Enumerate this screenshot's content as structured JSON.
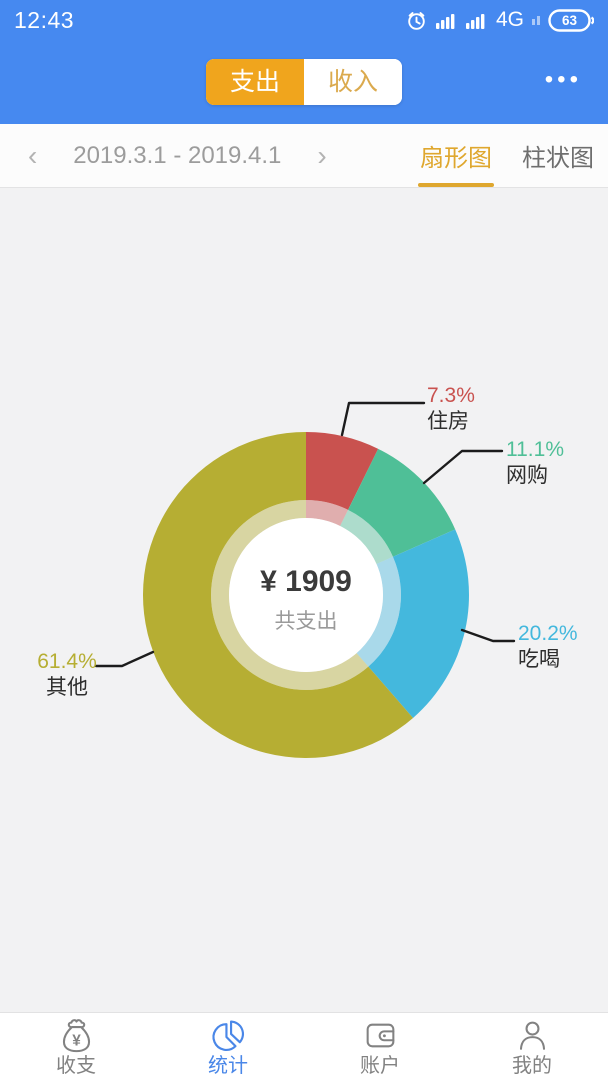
{
  "status_bar": {
    "time": "12:43",
    "network": "4G",
    "battery_percent": "63"
  },
  "header": {
    "expense_label": "支出",
    "income_label": "收入",
    "more_menu": "•••"
  },
  "period_bar": {
    "prev": "‹",
    "next": "›",
    "range": "2019.3.1 - 2019.4.1",
    "pie_tab": "扇形图",
    "bar_tab": "柱状图"
  },
  "chart_data": {
    "type": "pie",
    "style": "donut",
    "direction": "clockwise",
    "start_angle_deg": 0,
    "center": {
      "amount": "¥ 1909",
      "label": "共支出"
    },
    "total": 1909,
    "currency": "¥",
    "legend_position": "outside-callouts",
    "slices": [
      {
        "name": "住房",
        "pct": 7.3,
        "pct_label": "7.3%",
        "color": "#c9524f"
      },
      {
        "name": "网购",
        "pct": 11.1,
        "pct_label": "11.1%",
        "color": "#4fbf97"
      },
      {
        "name": "吃喝",
        "pct": 20.2,
        "pct_label": "20.2%",
        "color": "#44b8dd"
      },
      {
        "name": "其他",
        "pct": 61.4,
        "pct_label": "61.4%",
        "color": "#b6ae33"
      }
    ]
  },
  "tab_bar": {
    "items": [
      {
        "label": "收支",
        "icon": "moneybag-icon",
        "active": false
      },
      {
        "label": "统计",
        "icon": "pie-icon",
        "active": true
      },
      {
        "label": "账户",
        "icon": "wallet-icon",
        "active": false
      },
      {
        "label": "我的",
        "icon": "person-icon",
        "active": false
      }
    ]
  },
  "colors": {
    "header_blue": "#4689f0",
    "accent_orange": "#f0a51d",
    "tab_gold": "#dfa72e",
    "nav_active_blue": "#4a87e8",
    "chart_bg": "#f2f2f3"
  }
}
